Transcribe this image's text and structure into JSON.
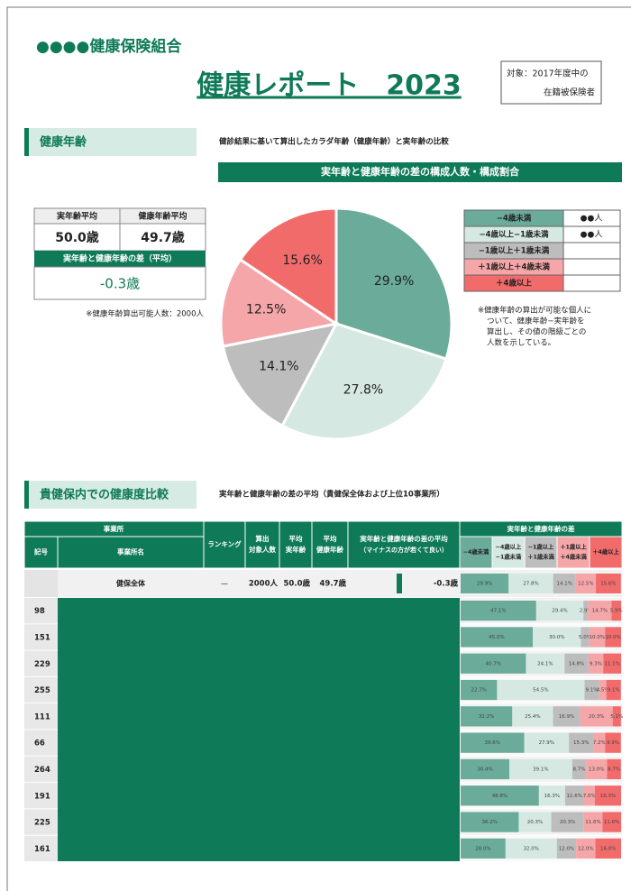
{
  "header": {
    "org": "●●●●健康保険組合",
    "title": "健康レポート　2023",
    "target": [
      "対象：2017年度中の",
      "在籍被保険者"
    ]
  },
  "health_age": {
    "title": "健康年齢",
    "description": "健診結果に基いて算出したカラダ年齢（健康年齢）と実年齢の比較",
    "summary": {
      "headers": [
        "実年齢平均",
        "健康年齢平均"
      ],
      "values": [
        "50.0歳",
        "49.7歳"
      ],
      "diff_label": "実年齢と健康年齢の差（平均）",
      "diff": "-0.3歳"
    },
    "note": "※健康年齢算出可能人数：2000人",
    "legend_counts": [
      "●●人",
      "●●人"
    ],
    "chart_note": [
      "※健康年齢の算出が可能な個人に",
      "ついて、健康年齢−実年齢を",
      "算出し、その値の階級ごとの",
      "人数を示している。"
    ]
  },
  "chart_data": {
    "type": "pie",
    "title": "実年齢と健康年齢の差の構成人数・構成割合",
    "categories": [
      "−4歳未満",
      "−4歳以上−1歳未満",
      "−1歳以上＋1歳未満",
      "＋1歳以上＋4歳未満",
      "＋4歳以上"
    ],
    "values": [
      29.9,
      27.8,
      14.1,
      12.5,
      15.6
    ],
    "value_labels": [
      "29.9%",
      "27.8%",
      "14.1%",
      "12.5%",
      "15.6%"
    ],
    "colors": [
      "#6aab99",
      "#d5e8e1",
      "#bdbdbd",
      "#f5a6a8",
      "#f26b6b"
    ]
  },
  "comparison": {
    "title": "貴健保内での健康度比較",
    "description": "実年齢と健康年齢の差の平均（貴健保全体および上位10事業所）",
    "table": {
      "group_headers": [
        "事業所",
        "実年齢と健康年齢の差"
      ],
      "columns": [
        [
          "記号"
        ],
        [
          "事業所名"
        ],
        [
          "ランキング"
        ],
        [
          "算出",
          "対象人数"
        ],
        [
          "平均",
          "実年齢"
        ],
        [
          "平均",
          "健康年齢"
        ],
        [
          "実年齢と健康年齢の差の平均",
          "（マイナスの方が若くて良い）"
        ]
      ],
      "dist_headers": [
        [
          "−4歳未満"
        ],
        [
          "−4歳以上",
          "−1歳未満"
        ],
        [
          "−1歳以上",
          "＋1歳未満"
        ],
        [
          "＋1歳以上",
          "＋4歳未満"
        ],
        [
          "＋4歳以上"
        ]
      ],
      "total": {
        "name": "健保全体",
        "ranking": "—",
        "count": "2000人",
        "age": "50.0歳",
        "health_age": "49.7歳",
        "diff": "-0.3歳",
        "diff_value": -0.3,
        "dist": [
          29.9,
          27.8,
          14.1,
          12.5,
          15.6
        ],
        "dist_labels": [
          "29.9%",
          "27.8%",
          "14.1%",
          "12.5%",
          "15.6%"
        ]
      },
      "rows": [
        {
          "code": "98",
          "dist": [
            47.1,
            29.4,
            2.9,
            14.7,
            5.9
          ],
          "dist_labels": [
            "47.1%",
            "29.4%",
            "2.9%",
            "14.7%",
            "5.9%"
          ]
        },
        {
          "code": "151",
          "dist": [
            45.0,
            30.0,
            5.0,
            10.0,
            10.0
          ],
          "dist_labels": [
            "45.0%",
            "30.0%",
            "5.0%",
            "10.0%",
            "10.0%"
          ]
        },
        {
          "code": "229",
          "dist": [
            40.7,
            24.1,
            14.8,
            9.3,
            11.1
          ],
          "dist_labels": [
            "40.7%",
            "24.1%",
            "14.8%",
            "9.3%",
            "11.1%"
          ]
        },
        {
          "code": "255",
          "dist": [
            22.7,
            54.5,
            9.1,
            4.5,
            9.1
          ],
          "dist_labels": [
            "22.7%",
            "54.5%",
            "9.1%",
            "4.5%",
            "9.1%"
          ]
        },
        {
          "code": "111",
          "dist": [
            32.2,
            25.4,
            16.9,
            20.3,
            5.1
          ],
          "dist_labels": [
            "32.2%",
            "25.4%",
            "16.9%",
            "20.3%",
            "5.1%"
          ]
        },
        {
          "code": "66",
          "dist": [
            39.6,
            27.9,
            15.3,
            7.2,
            9.9
          ],
          "dist_labels": [
            "39.6%",
            "27.9%",
            "15.3%",
            "7.2%",
            "9.9%"
          ]
        },
        {
          "code": "264",
          "dist": [
            30.4,
            39.1,
            8.7,
            13.0,
            8.7
          ],
          "dist_labels": [
            "30.4%",
            "39.1%",
            "8.7%",
            "13.0%",
            "8.7%"
          ]
        },
        {
          "code": "191",
          "dist": [
            48.8,
            16.3,
            11.6,
            7.0,
            16.3
          ],
          "dist_labels": [
            "48.8%",
            "16.3%",
            "11.6%",
            "7.0%",
            "16.3%"
          ]
        },
        {
          "code": "225",
          "dist": [
            36.2,
            20.3,
            20.3,
            11.6,
            11.6
          ],
          "dist_labels": [
            "36.2%",
            "20.3%",
            "20.3%",
            "11.6%",
            "11.6%"
          ]
        },
        {
          "code": "161",
          "dist": [
            28.0,
            32.0,
            12.0,
            12.0,
            16.0
          ],
          "dist_labels": [
            "28.0%",
            "32.0%",
            "12.0%",
            "12.0%",
            "16.0%"
          ]
        }
      ]
    }
  }
}
